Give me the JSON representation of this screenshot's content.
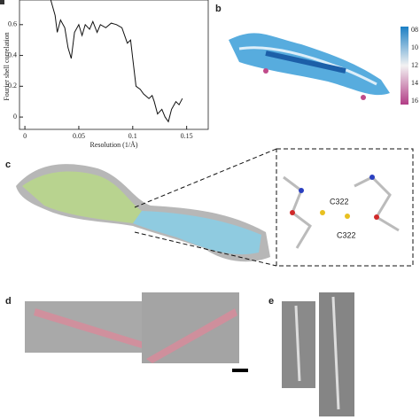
{
  "chart_data": {
    "type": "line",
    "y_label": "Fourier shell correlation",
    "x_label": "Resolution (1/Å)",
    "x": [
      0.024,
      0.028,
      0.03,
      0.033,
      0.037,
      0.04,
      0.043,
      0.046,
      0.05,
      0.053,
      0.056,
      0.06,
      0.063,
      0.067,
      0.07,
      0.075,
      0.08,
      0.085,
      0.09,
      0.095,
      0.098,
      0.1,
      0.103,
      0.107,
      0.11,
      0.115,
      0.118,
      0.12,
      0.123,
      0.127,
      0.13,
      0.133,
      0.136,
      0.14,
      0.143,
      0.146
    ],
    "values": [
      0.76,
      0.66,
      0.55,
      0.63,
      0.58,
      0.45,
      0.38,
      0.55,
      0.6,
      0.53,
      0.6,
      0.57,
      0.62,
      0.55,
      0.6,
      0.58,
      0.61,
      0.6,
      0.58,
      0.48,
      0.5,
      0.38,
      0.2,
      0.18,
      0.15,
      0.12,
      0.14,
      0.1,
      0.02,
      0.05,
      0.0,
      -0.03,
      0.05,
      0.1,
      0.08,
      0.12
    ],
    "color": "#111111",
    "xlim": [
      -0.005,
      0.17
    ],
    "xticks": [
      0,
      0.05,
      0.1,
      0.15
    ],
    "ylim": [
      -0.08,
      0.76
    ],
    "yticks": [
      0,
      0.2,
      0.4,
      0.6
    ]
  },
  "panels": {
    "b": {
      "label": "b",
      "colorbar": [
        "08",
        "10",
        "12",
        "14",
        "16"
      ]
    },
    "c": {
      "label": "c",
      "residues": [
        "C322",
        "C322"
      ]
    },
    "d": {
      "label": "d"
    },
    "e": {
      "label": "e"
    }
  }
}
